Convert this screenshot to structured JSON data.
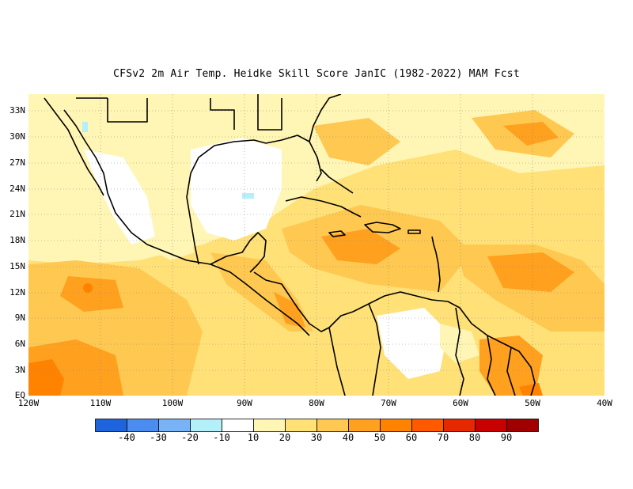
{
  "title": "CFSv2  2m Air Temp. Heidke Skill Score JanIC (1982-2022) MAM Fcst",
  "lat_labels": [
    "33N",
    "30N",
    "27N",
    "24N",
    "21N",
    "18N",
    "15N",
    "12N",
    "9N",
    "6N",
    "3N",
    "EQ"
  ],
  "lon_labels": [
    "120W",
    "110W",
    "100W",
    "90W",
    "80W",
    "70W",
    "60W",
    "50W",
    "40W"
  ],
  "colorbar": {
    "labels": [
      "-40",
      "-30",
      "-20",
      "-10",
      "10",
      "20",
      "30",
      "40",
      "50",
      "60",
      "70",
      "80",
      "90"
    ],
    "colors": [
      "#1e64dc",
      "#4b8cf0",
      "#78b4f5",
      "#b4f0fa",
      "#ffffff",
      "#fff5b4",
      "#ffe178",
      "#ffc850",
      "#ffa01e",
      "#ff8200",
      "#ff5a00",
      "#e62800",
      "#c80000",
      "#a00000"
    ]
  }
}
